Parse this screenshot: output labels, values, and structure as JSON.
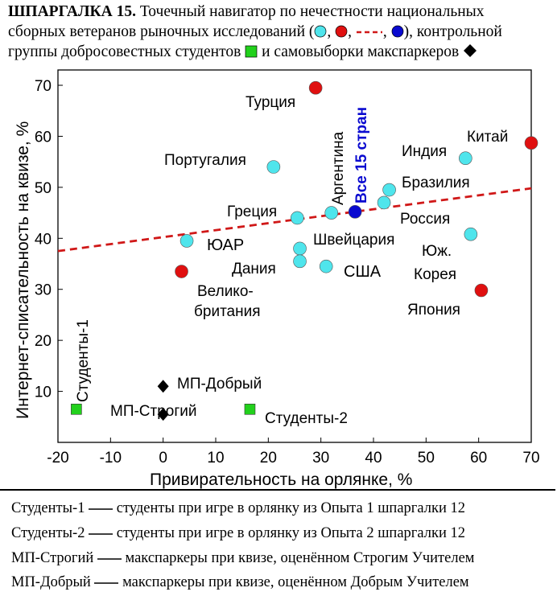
{
  "header": {
    "bold": "ШПАРГАЛКА 15.",
    "line1": "Точечный навигатор по нечестности национальных",
    "line2a": "сборных ветеранов рыночных исследований (",
    "line2b": "), контрольной",
    "line3": "группы добросовестных студентов",
    "line3b": "и самовыборки макспаркеров"
  },
  "colors": {
    "cyan": "#4fe5ec",
    "red": "#e01010",
    "blue": "#0a0ad0",
    "green": "#22d11c",
    "black": "#000000",
    "trend": "#d01818"
  },
  "chart_data": {
    "type": "scatter",
    "xlabel": "Привирательность на орлянке, %",
    "ylabel": "Интернет-списательность на квизе, %",
    "xlim": [
      -20,
      70
    ],
    "ylim": [
      0,
      73
    ],
    "xticks": [
      -20,
      -10,
      0,
      10,
      20,
      30,
      40,
      50,
      60,
      70
    ],
    "yticks": [
      10,
      20,
      30,
      40,
      50,
      60,
      70
    ],
    "trendline": {
      "x": [
        -20,
        70
      ],
      "y": [
        37.5,
        49.8
      ]
    },
    "points": [
      {
        "label": "Турция",
        "x": 29,
        "y": 69.5,
        "group": "red"
      },
      {
        "label": "Китай",
        "x": 70,
        "y": 58.7,
        "group": "red"
      },
      {
        "label": "Индия",
        "x": 57.5,
        "y": 55.7,
        "group": "cyan"
      },
      {
        "label": "Португалия",
        "x": 21,
        "y": 54,
        "group": "cyan"
      },
      {
        "label": "Бразилия",
        "x": 43,
        "y": 49.5,
        "group": "cyan"
      },
      {
        "label": "Россия",
        "x": 42,
        "y": 47,
        "group": "cyan"
      },
      {
        "label": "Аргентина",
        "x": 32,
        "y": 45,
        "group": "cyan"
      },
      {
        "label": "Все 15 стран",
        "x": 36.5,
        "y": 45.2,
        "group": "blue"
      },
      {
        "label": "Греция",
        "x": 25.5,
        "y": 44,
        "group": "cyan"
      },
      {
        "label": "ЮАР",
        "x": 4.5,
        "y": 39.5,
        "group": "cyan"
      },
      {
        "label": "Юж. Корея",
        "x": 58.5,
        "y": 40.8,
        "group": "cyan"
      },
      {
        "label": "Швейцария",
        "x": 26,
        "y": 38,
        "group": "cyan"
      },
      {
        "label": "Дания",
        "x": 26,
        "y": 35.5,
        "group": "cyan"
      },
      {
        "label": "США",
        "x": 31,
        "y": 34.5,
        "group": "cyan"
      },
      {
        "label": "Велико-британия",
        "x": 3.5,
        "y": 33.5,
        "group": "red"
      },
      {
        "label": "Япония",
        "x": 60.5,
        "y": 29.8,
        "group": "red"
      },
      {
        "label": "Студенты-1",
        "x": -16.5,
        "y": 6.5,
        "group": "green"
      },
      {
        "label": "Студенты-2",
        "x": 16.5,
        "y": 6.5,
        "group": "green"
      },
      {
        "label": "МП-Добрый",
        "x": 0,
        "y": 11,
        "group": "black"
      },
      {
        "label": "МП-Строгий",
        "x": 0,
        "y": 5.5,
        "group": "black"
      }
    ],
    "labels_text": {
      "turkey": "Турция",
      "china": "Китай",
      "india": "Индия",
      "portugal": "Португалия",
      "brazil": "Бразилия",
      "russia": "Россия",
      "argentina": "Аргентина",
      "all15": "Все 15 стран",
      "greece": "Греция",
      "rsa": "ЮАР",
      "skorea1": "Юж.",
      "skorea2": "Корея",
      "swiss": "Швейцария",
      "denmark": "Дания",
      "usa": "США",
      "uk1": "Велико-",
      "uk2": "британия",
      "japan": "Япония",
      "students1": "Студенты-1",
      "students2": "Студенты-2",
      "mpgood": "МП-Добрый",
      "mpstrict": "МП-Строгий"
    }
  },
  "legend": [
    {
      "name": "Студенты-1",
      "text": "студенты при игре в орлянку из Опыта 1 шпаргалки 12"
    },
    {
      "name": "Студенты-2",
      "text": " студенты при игре в орлянку из Опыта 2 шпаргалки 12"
    },
    {
      "name": "МП-Строгий",
      "text": "макспаркеры при квизе, оценённом Строгим Учителем"
    },
    {
      "name": "МП-Добрый",
      "text": "макспаркеры при квизе, оценённом Добрым Учителем"
    }
  ]
}
